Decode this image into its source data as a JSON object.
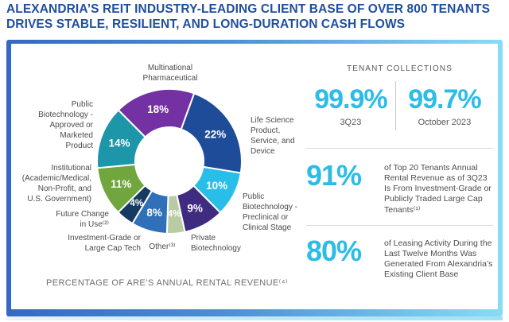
{
  "page": {
    "title_lines": [
      "ALEXANDRIA’S REIT INDUSTRY-LEADING CLIENT BASE OF OVER 800 TENANTS",
      "DRIVES STABLE, RESILIENT, AND LONG-DURATION CASH FLOWS"
    ]
  },
  "theme": {
    "title_blue": "#1F4E9E",
    "accent_cyan": "#2BBCE7",
    "border_gradient_left": "#3568C2",
    "border_gradient_right": "#87DDF3",
    "label_gray": "#4B4B4D",
    "caption_gray": "#6D6E71"
  },
  "chart_data": {
    "type": "pie",
    "donut": true,
    "title": "PERCENTAGE OF ARE’S ANNUAL RENTAL REVENUE⁽⁴⁾",
    "legend_position": "around-chart-callouts",
    "start_angle_deg": 20,
    "units": "% of annual rental revenue",
    "segments": [
      {
        "label": "Life Science Product, Service, and Device",
        "value": 22,
        "color": "#1E4C99"
      },
      {
        "label": "Public Biotechnology - Preclinical or Clinical Stage",
        "value": 10,
        "color": "#29BEE8"
      },
      {
        "label": "Private Biotechnology",
        "value": 9,
        "color": "#3F2B80"
      },
      {
        "label": "Other⁽³⁾",
        "value": 4,
        "color": "#B9CBA3"
      },
      {
        "label": "Investment-Grade or Large Cap Tech",
        "value": 8,
        "color": "#2F70B8"
      },
      {
        "label": "Future Change in Use⁽²⁾",
        "value": 4,
        "color": "#163A61"
      },
      {
        "label": "Institutional (Academic/Medical, Non-Profit, and U.S. Government)",
        "value": 11,
        "color": "#70A63D"
      },
      {
        "label": "Public Biotechnology - Approved or Marketed Product",
        "value": 14,
        "color": "#1E96A9"
      },
      {
        "label": "Multinational Pharmaceutical",
        "value": 18,
        "color": "#7331A4"
      }
    ],
    "callouts": {
      "multinational_pharma": [
        "Multinational",
        "Pharmaceutical"
      ],
      "life_science": [
        "Life Science",
        "Product,",
        "Service, and",
        "Device"
      ],
      "public_biotech_preclinical": [
        "Public",
        "Biotechnology -",
        "Preclinical or",
        "Clinical Stage"
      ],
      "private_biotech": [
        "Private",
        "Biotechnology"
      ],
      "other": [
        "Other⁽³⁾"
      ],
      "investment_grade": [
        "Investment-Grade or",
        "Large Cap Tech"
      ],
      "future_change": [
        "Future Change",
        "in Use⁽²⁾"
      ],
      "institutional": [
        "Institutional",
        "(Academic/Medical,",
        "Non-Profit, and",
        "U.S. Government)"
      ],
      "public_biotech_approved": [
        "Public",
        "Biotechnology -",
        "Approved or",
        "Marketed",
        "Product"
      ]
    }
  },
  "stats": {
    "tenant_collections": {
      "heading": "TENANT COLLECTIONS",
      "items": [
        {
          "value": "99.9%",
          "caption": "3Q23"
        },
        {
          "value": "99.7%",
          "caption": "October 2023"
        }
      ]
    },
    "top20": {
      "value": "91%",
      "description": "of Top 20 Tenants Annual Rental Revenue as of 3Q23 Is From Investment-Grade or Publicly Traded Large Cap Tenants⁽¹⁾"
    },
    "leasing": {
      "value": "80%",
      "description": "of Leasing Activity During the Last Twelve Months Was Generated From Alexandria’s Existing Client Base"
    }
  }
}
